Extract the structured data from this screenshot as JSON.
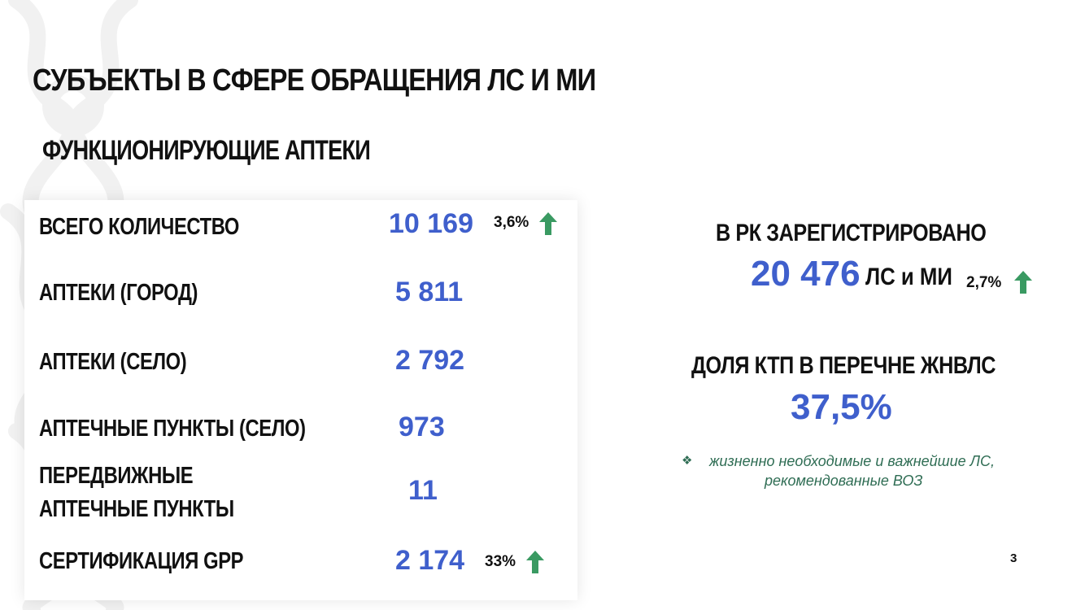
{
  "title": "СУБЪЕКТЫ В СФЕРЕ ОБРАЩЕНИЯ ЛС И МИ",
  "subtitle": "ФУНКЦИОНИРУЮЩИЕ АПТЕКИ",
  "rows": [
    {
      "label": "ВСЕГО КОЛИЧЕСТВО",
      "value": "10 169",
      "change": "3,6%"
    },
    {
      "label": "АПТЕКИ (ГОРОД)",
      "value": "5 811"
    },
    {
      "label": "АПТЕКИ (СЕЛО)",
      "value": "2 792"
    },
    {
      "label": "АПТЕЧНЫЕ ПУНКТЫ (СЕЛО)",
      "value": "973"
    },
    {
      "label_line1": "ПЕРЕДВИЖНЫЕ",
      "label_line2": "АПТЕЧНЫЕ ПУНКТЫ",
      "value": "11"
    },
    {
      "label": "СЕРТИФИКАЦИЯ GPP",
      "value": "2 174",
      "change": "33%"
    }
  ],
  "registered": {
    "heading": "В РК ЗАРЕГИСТРИРОВАНО",
    "value": "20 476",
    "unit": "ЛС и МИ",
    "change": "2,7%"
  },
  "share": {
    "heading": "ДОЛЯ КТП В ПЕРЕЧНЕ ЖНВЛС",
    "value": "37,5%"
  },
  "note": {
    "line1": "жизненно необходимые и важнейшие ЛС,",
    "line2": "рекомендованные ВОЗ"
  },
  "page_number": "3",
  "colors": {
    "value_blue": "#3f5fcc",
    "arrow_green": "#3a9a62",
    "note_green": "#2f6d54"
  }
}
